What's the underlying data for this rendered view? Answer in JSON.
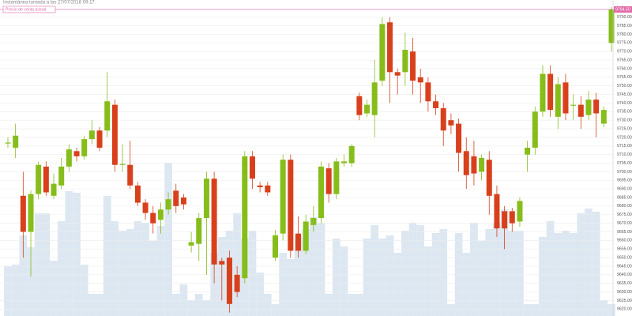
{
  "chart_data": {
    "type": "candlestick",
    "title": "Instantánea tomada a las 27/07/2016 09:17",
    "annotation": "Precio de venta actual",
    "current": {
      "value": 9794.5,
      "label": "9794.50"
    },
    "up_color": "#86bd1a",
    "down_color": "#d8401c",
    "volume_color": "#dce7f1",
    "current_color": "#e26aa8",
    "grid": true,
    "ylim": [
      9616,
      9800
    ],
    "yticks": [
      {
        "value": 9620,
        "label": "9620.00"
      },
      {
        "value": 9625,
        "label": "9625.00"
      },
      {
        "value": 9630,
        "label": "9630.00"
      },
      {
        "value": 9635,
        "label": "9635.00"
      },
      {
        "value": 9640,
        "label": "9640.00"
      },
      {
        "value": 9645,
        "label": "9645.00"
      },
      {
        "value": 9650,
        "label": "9650.00"
      },
      {
        "value": 9655,
        "label": "9655.00"
      },
      {
        "value": 9660,
        "label": "9660.00"
      },
      {
        "value": 9665,
        "label": "9665.00"
      },
      {
        "value": 9670,
        "label": "9670.00"
      },
      {
        "value": 9675,
        "label": "9675.00"
      },
      {
        "value": 9680,
        "label": "9680.00"
      },
      {
        "value": 9685,
        "label": "9685.00"
      },
      {
        "value": 9690,
        "label": "9690.00"
      },
      {
        "value": 9695,
        "label": "9695.00"
      },
      {
        "value": 9700,
        "label": "9700.00"
      },
      {
        "value": 9705,
        "label": "9705.00"
      },
      {
        "value": 9710,
        "label": "9710.00"
      },
      {
        "value": 9715,
        "label": "9715.00"
      },
      {
        "value": 9720,
        "label": "9720.00"
      },
      {
        "value": 9725,
        "label": "9725.00"
      },
      {
        "value": 9730,
        "label": "9730.00"
      },
      {
        "value": 9735,
        "label": "9735.00"
      },
      {
        "value": 9740,
        "label": "9740.00"
      },
      {
        "value": 9745,
        "label": "9745.00"
      },
      {
        "value": 9750,
        "label": "9750.00"
      },
      {
        "value": 9755,
        "label": "9755.00"
      },
      {
        "value": 9760,
        "label": "9760.00"
      },
      {
        "value": 9765,
        "label": "9765.00"
      },
      {
        "value": 9770,
        "label": "9770.00"
      },
      {
        "value": 9775,
        "label": "9775.00"
      },
      {
        "value": 9780,
        "label": "9780.00"
      },
      {
        "value": 9785,
        "label": "9785.00"
      },
      {
        "value": 9790,
        "label": "9790.00"
      }
    ],
    "open": [
      9717,
      9714,
      9686,
      9665,
      9687,
      9703,
      9686,
      9692,
      9703,
      9712,
      9709,
      9719,
      9724,
      9724,
      9739,
      9704,
      9704,
      9692,
      9682,
      9676,
      9672,
      9678,
      9689,
      9685,
      9657,
      9658,
      9673,
      9696,
      9648,
      9650,
      9640,
      9638,
      9709,
      9692,
      9692,
      9650,
      9664,
      9707,
      9664,
      9654,
      9669,
      9673,
      9702,
      9687,
      9705,
      9705,
      9744,
      9734,
      9733,
      9753,
      9787,
      9758,
      9758,
      9770,
      9755,
      9752,
      9741,
      9737,
      9730,
      9728,
      9712,
      9709,
      9700,
      9707,
      9687,
      9677,
      9677,
      9671,
      9710,
      9714,
      9735,
      9757,
      9732,
      9752,
      9739,
      9739,
      9733,
      9742,
      9728,
      9775
    ],
    "high": [
      9720,
      9728,
      9700,
      9689,
      9706,
      9706,
      9699,
      9708,
      9716,
      9714,
      9721,
      9730,
      9726,
      9758,
      9742,
      9716,
      9718,
      9694,
      9684,
      9680,
      9682,
      9688,
      9693,
      9687,
      9665,
      9676,
      9700,
      9700,
      9650,
      9654,
      9645,
      9712,
      9712,
      9694,
      9694,
      9666,
      9710,
      9710,
      9674,
      9675,
      9680,
      9706,
      9705,
      9708,
      9710,
      9716,
      9746,
      9742,
      9765,
      9790,
      9790,
      9760,
      9781,
      9778,
      9760,
      9755,
      9745,
      9740,
      9734,
      9731,
      9720,
      9718,
      9710,
      9712,
      9692,
      9680,
      9679,
      9685,
      9718,
      9738,
      9762,
      9762,
      9755,
      9757,
      9745,
      9744,
      9747,
      9746,
      9738,
      9796
    ],
    "low": [
      9714,
      9708,
      9650,
      9639,
      9684,
      9686,
      9684,
      9690,
      9700,
      9706,
      9707,
      9716,
      9712,
      9720,
      9700,
      9700,
      9690,
      9680,
      9672,
      9664,
      9664,
      9675,
      9676,
      9678,
      9653,
      9648,
      9640,
      9635,
      9625,
      9618,
      9627,
      9635,
      9690,
      9688,
      9686,
      9648,
      9660,
      9650,
      9650,
      9652,
      9665,
      9670,
      9682,
      9684,
      9703,
      9703,
      9730,
      9732,
      9720,
      9750,
      9740,
      9745,
      9750,
      9745,
      9740,
      9735,
      9733,
      9715,
      9722,
      9700,
      9690,
      9692,
      9695,
      9675,
      9662,
      9655,
      9665,
      9668,
      9700,
      9710,
      9732,
      9732,
      9725,
      9730,
      9730,
      9725,
      9730,
      9720,
      9726,
      9770
    ],
    "close": [
      9717,
      9721,
      9665,
      9687,
      9704,
      9688,
      9693,
      9703,
      9713,
      9709,
      9719,
      9724,
      9714,
      9741,
      9704,
      9704.5,
      9692,
      9682,
      9676,
      9670,
      9678,
      9684,
      9680,
      9681,
      9659,
      9673,
      9696,
      9646,
      9646,
      9623,
      9630,
      9709,
      9696,
      9691,
      9688,
      9663,
      9707,
      9654,
      9654,
      9671,
      9673,
      9703,
      9687,
      9706,
      9706,
      9715,
      9733,
      9739,
      9752,
      9786,
      9758,
      9756,
      9771,
      9753,
      9752,
      9741,
      9737,
      9724,
      9727,
      9711,
      9698,
      9699,
      9708,
      9686,
      9667,
      9667,
      9670,
      9683,
      9714,
      9735,
      9757,
      9736,
      9751,
      9734,
      9739,
      9732,
      9742,
      9734,
      9736,
      9794.5
    ],
    "volume": [
      63,
      65,
      102,
      87,
      130,
      130,
      70,
      120,
      158,
      156,
      65,
      28,
      28,
      152,
      120,
      108,
      110,
      120,
      118,
      95,
      114,
      194,
      28,
      40,
      20,
      28,
      20,
      80,
      100,
      108,
      130,
      98,
      108,
      55,
      28,
      15,
      80,
      72,
      100,
      110,
      125,
      118,
      28,
      98,
      88,
      28,
      28,
      98,
      115,
      98,
      102,
      80,
      108,
      118,
      115,
      88,
      105,
      110,
      15,
      105,
      80,
      118,
      95,
      110,
      118,
      135,
      108,
      108,
      15,
      15,
      100,
      120,
      105,
      108,
      105,
      130,
      136,
      132,
      20,
      15
    ]
  }
}
